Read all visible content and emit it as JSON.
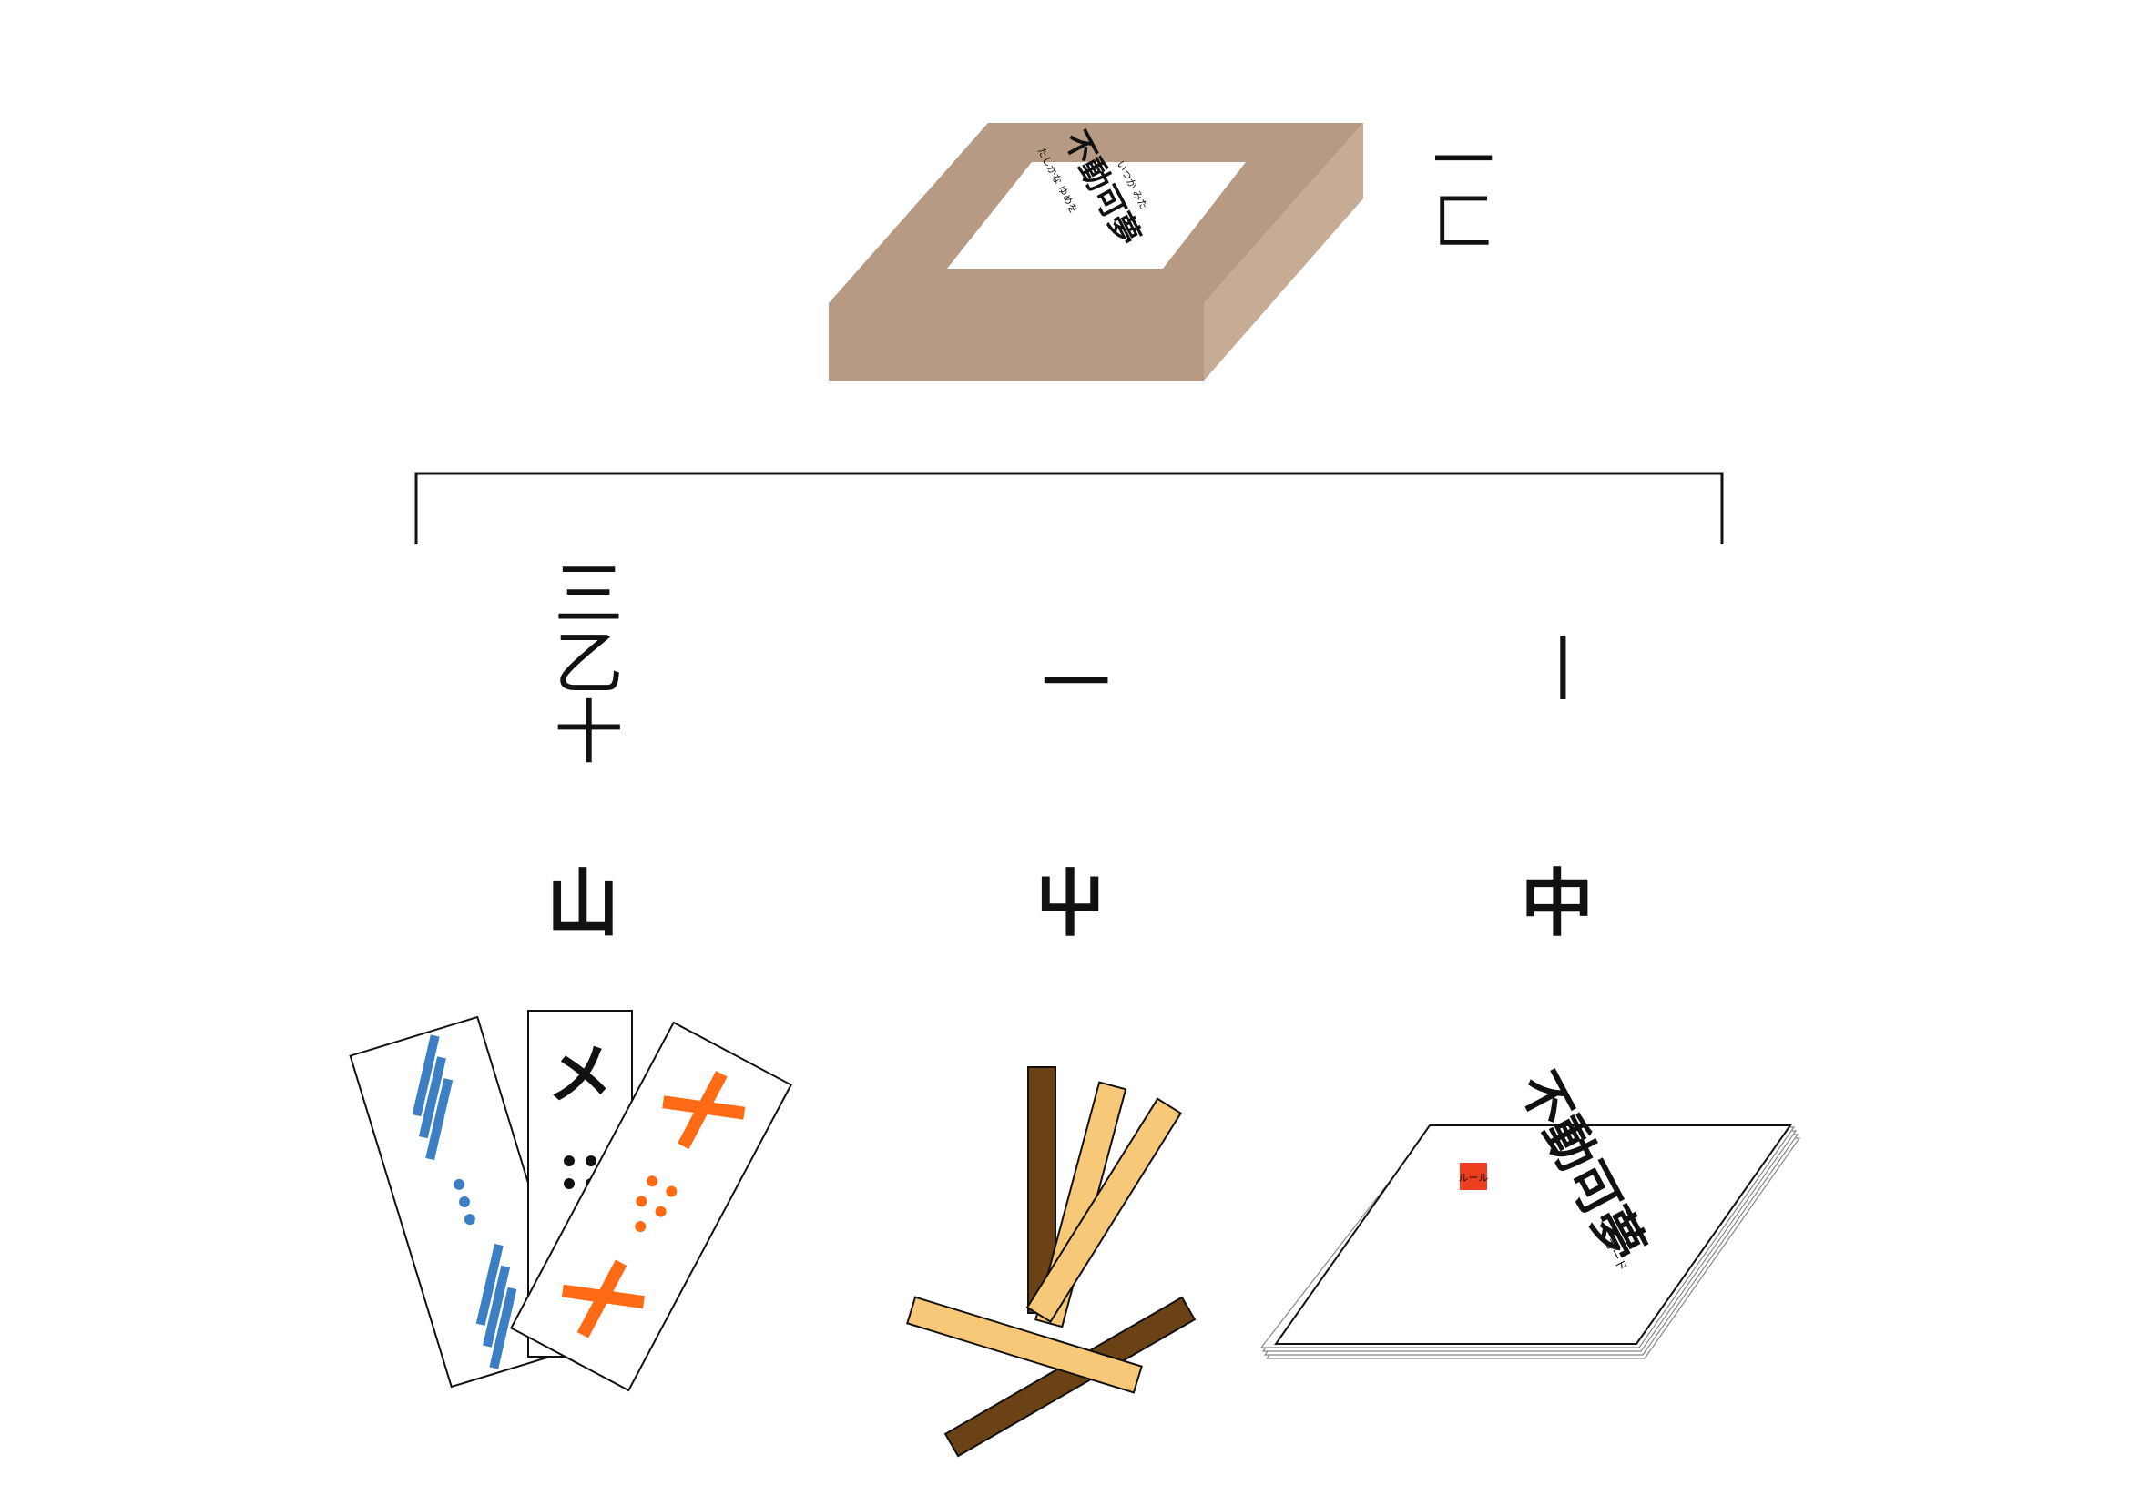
{
  "box": {
    "label": "一匚",
    "lid_title": "不動可夢",
    "lid_subtitle_left": "たしかな ゆめを",
    "lid_subtitle_right": "いつか みた"
  },
  "columns": [
    {
      "label": "三乙十",
      "name": "山"
    },
    {
      "label": "一",
      "name": "屮"
    },
    {
      "label": "丨",
      "name": "中"
    }
  ],
  "cards": [
    {
      "symbol": "三",
      "color": "#3d7fc4"
    },
    {
      "symbol": "メ",
      "color": "#111111"
    },
    {
      "symbol": "+",
      "color": "#ff6a14"
    }
  ],
  "rulebook": {
    "title": "不動可夢",
    "badge": "ルール",
    "sub": "カード"
  },
  "colors": {
    "box_top": "#b79a83",
    "box_side": "#c6ab95",
    "stick_dark": "#6b4216",
    "stick_light": "#f8c879",
    "card_blue": "#3d7fc4",
    "card_orange": "#ff6a14",
    "badge_red": "#ec3f1f"
  }
}
